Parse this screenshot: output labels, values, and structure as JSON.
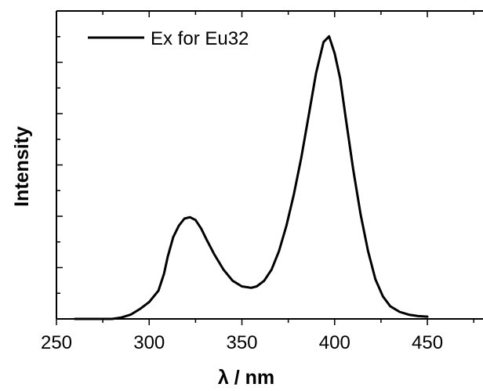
{
  "chart_data": {
    "type": "line",
    "title": "",
    "xlabel": "λ / nm",
    "ylabel": "Intensity",
    "xlim": [
      250,
      480
    ],
    "ylim": [
      0,
      1.09
    ],
    "xticks": [
      250,
      300,
      350,
      400,
      450
    ],
    "yticks_labeled": false,
    "grid": false,
    "legend": {
      "position": "top-left"
    },
    "series": [
      {
        "name": "Ex for Eu32",
        "color": "#000000",
        "x": [
          260,
          270,
          280,
          285,
          290,
          295,
          300,
          305,
          308,
          310,
          313,
          316,
          319,
          322,
          325,
          328,
          331,
          335,
          340,
          345,
          350,
          355,
          358,
          362,
          366,
          370,
          374,
          378,
          382,
          386,
          390,
          394,
          397,
          398,
          400,
          403,
          406,
          410,
          414,
          418,
          422,
          426,
          430,
          435,
          440,
          445,
          450
        ],
        "y": [
          0.0,
          0.0,
          0.0,
          0.005,
          0.015,
          0.035,
          0.06,
          0.1,
          0.16,
          0.22,
          0.29,
          0.33,
          0.355,
          0.36,
          0.35,
          0.32,
          0.28,
          0.23,
          0.175,
          0.135,
          0.115,
          0.11,
          0.115,
          0.135,
          0.175,
          0.24,
          0.33,
          0.44,
          0.57,
          0.72,
          0.87,
          0.98,
          1.0,
          0.98,
          0.94,
          0.85,
          0.71,
          0.53,
          0.37,
          0.24,
          0.14,
          0.08,
          0.045,
          0.025,
          0.015,
          0.01,
          0.008
        ]
      }
    ]
  }
}
